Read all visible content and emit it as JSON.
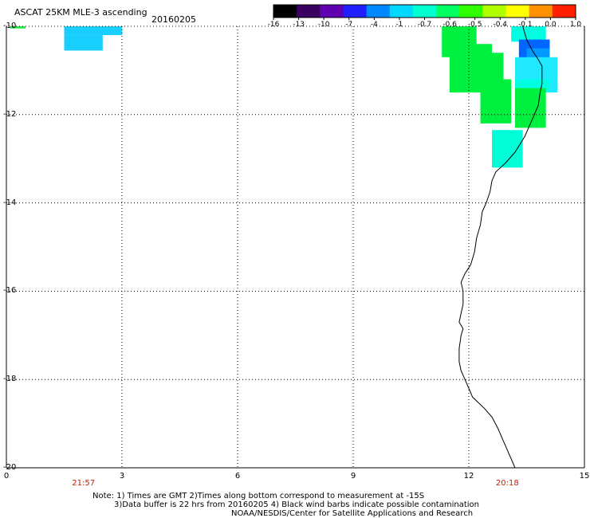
{
  "header": {
    "title": "ASCAT 25KM MLE-3 ascending",
    "date": "20160205"
  },
  "colorbar": {
    "labels": [
      "-16",
      "-13",
      "-10",
      "-7",
      "-4",
      "-1",
      "-0.7",
      "-0.6",
      "-0.5",
      "-0.4",
      "-0.1",
      "0.0",
      "1.0"
    ],
    "colors": [
      "#000000",
      "#3a0060",
      "#6000b0",
      "#2020ff",
      "#0088ff",
      "#00d8ff",
      "#00ffd0",
      "#00ff60",
      "#30ff00",
      "#b0ff00",
      "#ffff00",
      "#ff9000",
      "#ff2000"
    ]
  },
  "axes": {
    "y_labels": [
      "-10",
      "-12",
      "-14",
      "-16",
      "-18",
      "-20"
    ],
    "x_labels": [
      "0",
      "3",
      "6",
      "9",
      "12",
      "15"
    ],
    "xlim": [
      0,
      15
    ],
    "ylim": [
      -20,
      -10
    ],
    "grid": true
  },
  "times": [
    {
      "lon": 2,
      "label": "21:57"
    },
    {
      "lon": 13,
      "label": "20:18"
    }
  ],
  "cells": [
    {
      "lon0": 1.5,
      "lon1": 3.0,
      "lat0": -10.0,
      "lat1": -10.2,
      "color": "#19cfff"
    },
    {
      "lon0": 1.5,
      "lon1": 2.5,
      "lat0": -10.2,
      "lat1": -10.55,
      "color": "#19cfff"
    },
    {
      "lon0": 0.1,
      "lon1": 0.5,
      "lat0": -10.0,
      "lat1": -10.05,
      "color": "#22ee44"
    },
    {
      "lon0": 11.3,
      "lon1": 12.2,
      "lat0": -10.0,
      "lat1": -10.7,
      "color": "#00f040"
    },
    {
      "lon0": 11.5,
      "lon1": 12.6,
      "lat0": -10.4,
      "lat1": -11.5,
      "color": "#00f040"
    },
    {
      "lon0": 12.3,
      "lon1": 12.9,
      "lat0": -10.6,
      "lat1": -11.3,
      "color": "#00f040"
    },
    {
      "lon0": 12.3,
      "lon1": 13.1,
      "lat0": -11.2,
      "lat1": -12.2,
      "color": "#00f040"
    },
    {
      "lon0": 13.1,
      "lon1": 14.0,
      "lat0": -10.0,
      "lat1": -10.35,
      "color": "#00ffe0"
    },
    {
      "lon0": 13.3,
      "lon1": 14.1,
      "lat0": -10.3,
      "lat1": -10.75,
      "color": "#0066ff"
    },
    {
      "lon0": 13.5,
      "lon1": 14.1,
      "lat0": -10.5,
      "lat1": -10.85,
      "color": "#0099ff"
    },
    {
      "lon0": 13.2,
      "lon1": 14.3,
      "lat0": -10.7,
      "lat1": -11.5,
      "color": "#20e8ff"
    },
    {
      "lon0": 13.2,
      "lon1": 14.1,
      "lat0": -11.2,
      "lat1": -11.45,
      "color": "#00ffe0"
    },
    {
      "lon0": 13.2,
      "lon1": 14.0,
      "lat0": -11.4,
      "lat1": -12.3,
      "color": "#00f040"
    },
    {
      "lon0": 12.6,
      "lon1": 13.4,
      "lat0": -12.35,
      "lat1": -13.2,
      "color": "#00ffd8"
    }
  ],
  "coastline": [
    [
      13.4,
      -10.0
    ],
    [
      13.5,
      -10.3
    ],
    [
      13.65,
      -10.55
    ],
    [
      13.8,
      -10.75
    ],
    [
      13.9,
      -10.9
    ],
    [
      13.9,
      -11.3
    ],
    [
      13.85,
      -11.5
    ],
    [
      13.8,
      -11.8
    ],
    [
      13.6,
      -12.2
    ],
    [
      13.45,
      -12.5
    ],
    [
      13.2,
      -12.85
    ],
    [
      12.95,
      -13.1
    ],
    [
      12.7,
      -13.3
    ],
    [
      12.6,
      -13.5
    ],
    [
      12.55,
      -13.75
    ],
    [
      12.45,
      -14.0
    ],
    [
      12.35,
      -14.2
    ],
    [
      12.3,
      -14.5
    ],
    [
      12.2,
      -14.8
    ],
    [
      12.15,
      -15.1
    ],
    [
      12.05,
      -15.4
    ],
    [
      11.9,
      -15.6
    ],
    [
      11.8,
      -15.8
    ],
    [
      11.85,
      -16.0
    ],
    [
      11.85,
      -16.3
    ],
    [
      11.8,
      -16.5
    ],
    [
      11.75,
      -16.7
    ],
    [
      11.85,
      -16.85
    ],
    [
      11.8,
      -17.0
    ],
    [
      11.75,
      -17.3
    ],
    [
      11.75,
      -17.6
    ],
    [
      11.8,
      -17.8
    ],
    [
      11.9,
      -18.0
    ],
    [
      12.0,
      -18.2
    ],
    [
      12.1,
      -18.4
    ],
    [
      12.4,
      -18.65
    ],
    [
      12.6,
      -18.85
    ],
    [
      12.75,
      -19.1
    ],
    [
      12.9,
      -19.4
    ],
    [
      13.05,
      -19.7
    ],
    [
      13.2,
      -20.0
    ]
  ],
  "notes": {
    "line1": "Note: 1) Times are GMT 2)Times along bottom correspond to measurement at -15S",
    "line2": "3)Data buffer is 22 hrs from 20160205 4) Black wind barbs indicate possible contamination",
    "line3": "NOAA/NESDIS/Center for Satellite Applications and Research"
  }
}
